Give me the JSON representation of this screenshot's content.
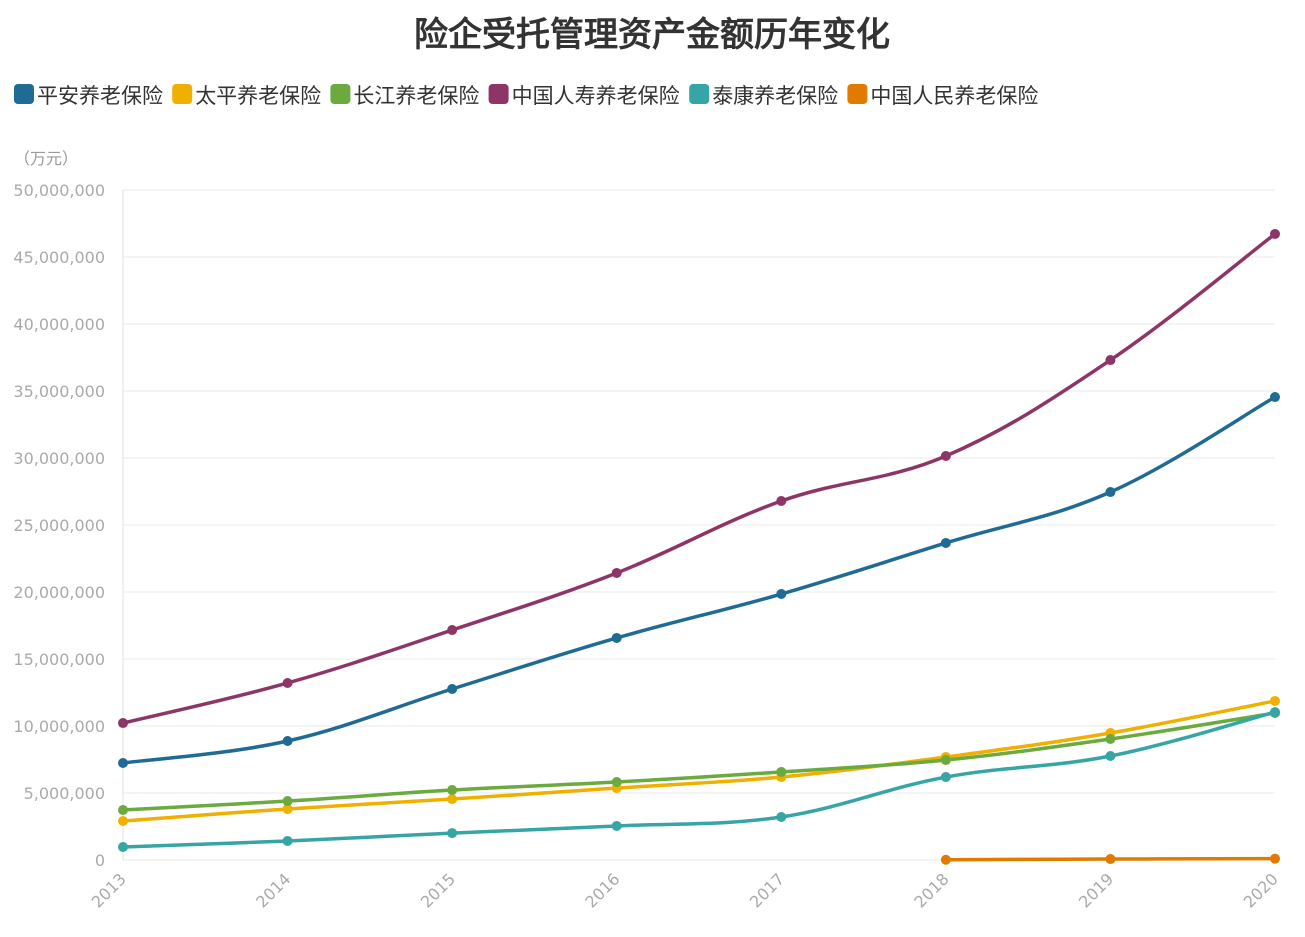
{
  "chart_data": {
    "type": "line",
    "title": "险企受托管理资产金额历年变化",
    "ylabel": "（万元）",
    "xlabel": "",
    "ylim": [
      0,
      50000000
    ],
    "yticks": [
      "0",
      "5,000,000",
      "10,000,000",
      "15,000,000",
      "20,000,000",
      "25,000,000",
      "30,000,000",
      "35,000,000",
      "40,000,000",
      "45,000,000",
      "50,000,000"
    ],
    "ytick_values": [
      0,
      5000000,
      10000000,
      15000000,
      20000000,
      25000000,
      30000000,
      35000000,
      40000000,
      45000000,
      50000000
    ],
    "grid": true,
    "legend_position": "top-left",
    "x": [
      "2013",
      "2014",
      "2015",
      "2016",
      "2017",
      "2018",
      "2019",
      "2020"
    ],
    "series": [
      {
        "name": "平安养老保险",
        "color": "#1f6b94",
        "values": [
          7240000,
          8880000,
          12760000,
          16570000,
          19850000,
          23660000,
          27460000,
          34550000
        ]
      },
      {
        "name": "太平养老保险",
        "color": "#f0b000",
        "values": [
          2910000,
          3810000,
          4550000,
          5370000,
          6190000,
          7690000,
          9480000,
          11870000
        ]
      },
      {
        "name": "长江养老保险",
        "color": "#6aaa3e",
        "values": [
          3730000,
          4400000,
          5220000,
          5820000,
          6570000,
          7460000,
          9030000,
          10970000
        ]
      },
      {
        "name": "中国人寿养老保险",
        "color": "#8e3568",
        "values": [
          10220000,
          13210000,
          17160000,
          21420000,
          26790000,
          30150000,
          37310000,
          46720000
        ]
      },
      {
        "name": "泰康养老保险",
        "color": "#35a5a5",
        "values": [
          970000,
          1420000,
          2010000,
          2540000,
          3210000,
          6190000,
          7760000,
          11040000
        ]
      },
      {
        "name": "中国人民养老保险",
        "color": "#e07b00",
        "values": [
          null,
          null,
          null,
          null,
          null,
          20000,
          70000,
          100000
        ]
      }
    ]
  }
}
